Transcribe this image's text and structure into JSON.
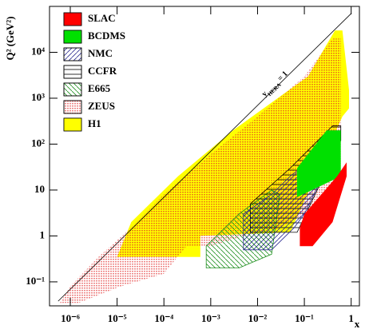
{
  "chart_data": {
    "type": "area",
    "x_label": "x",
    "y_label": "Q² (GeV²)",
    "x_scale": "log",
    "y_scale": "log",
    "xlim": [
      3.6e-07,
      1.5
    ],
    "ylim": [
      0.03,
      100000
    ],
    "xticks": [
      {
        "value": 1e-06,
        "label": "10⁻⁶"
      },
      {
        "value": 1e-05,
        "label": "10⁻⁵"
      },
      {
        "value": 0.0001,
        "label": "10⁻⁴"
      },
      {
        "value": 0.001,
        "label": "10⁻³"
      },
      {
        "value": 0.01,
        "label": "10⁻²"
      },
      {
        "value": 0.1,
        "label": "10⁻¹"
      },
      1
    ],
    "yticks": [
      {
        "value": 0.1,
        "label": "10⁻¹"
      },
      1,
      10,
      {
        "value": 100,
        "label": "10²"
      },
      {
        "value": 1000,
        "label": "10³"
      },
      {
        "value": 10000,
        "label": "10⁴"
      }
    ],
    "legend_position": "upper left",
    "reference_line": {
      "label": "y",
      "label_subscript": "HERA",
      "label_suffix": " = 1",
      "x": [
        5.5e-07,
        1
      ],
      "values": [
        0.038,
        70000
      ]
    },
    "series": [
      {
        "name": "SLAC",
        "color": "#ff0000",
        "pattern": "solid",
        "x": [
          0.08,
          0.15,
          0.4,
          0.8,
          0.8,
          0.5,
          0.1,
          0.08
        ],
        "values": [
          0.6,
          0.6,
          2,
          20,
          40,
          20,
          3,
          1.5
        ]
      },
      {
        "name": "BCDMS",
        "color": "#00e000",
        "pattern": "solid",
        "x": [
          0.07,
          0.6,
          0.6,
          0.3,
          0.07
        ],
        "values": [
          7,
          20,
          200,
          200,
          30
        ]
      },
      {
        "name": "NMC",
        "color": "#2a2a90",
        "pattern": "diagonal",
        "x": [
          0.005,
          0.02,
          0.06,
          0.1,
          0.3,
          0.2,
          0.05,
          0.02,
          0.005
        ],
        "values": [
          0.5,
          0.5,
          1.5,
          3,
          30,
          60,
          20,
          8,
          3
        ]
      },
      {
        "name": "CCFR",
        "color": "#000000",
        "pattern": "horizontal",
        "x": [
          0.007,
          0.07,
          0.6,
          0.6,
          0.4,
          0.05,
          0.007
        ],
        "values": [
          1.2,
          1.2,
          120,
          250,
          250,
          30,
          5
        ]
      },
      {
        "name": "E665",
        "color": "#209020",
        "pattern": "diagonal-reverse",
        "x": [
          0.0008,
          0.004,
          0.02,
          0.03,
          0.02,
          0.004,
          0.0008
        ],
        "values": [
          0.2,
          0.2,
          0.4,
          8,
          10,
          3,
          0.6
        ]
      },
      {
        "name": "ZEUS",
        "color": "#e02020",
        "pattern": "crosshatch",
        "x": [
          6e-07,
          1.5e-06,
          1.2e-05,
          0.0001,
          0.0003,
          0.001,
          0.005,
          0.03,
          0.1,
          0.6,
          0.6,
          0.4,
          0.1,
          0.01,
          0.001,
          0.0001,
          2e-05,
          4e-06,
          1e-06
        ],
        "values": [
          0.035,
          0.035,
          0.08,
          0.15,
          0.6,
          0.6,
          1,
          1.5,
          3,
          10,
          20000,
          20000,
          3000,
          400,
          60,
          8,
          1.5,
          0.35,
          0.08
        ]
      },
      {
        "name": "H1",
        "color": "#ffff00",
        "pattern": "solid",
        "x": [
          1e-05,
          0.0006,
          0.0006,
          0.05,
          0.65,
          0.9,
          0.9,
          0.65,
          0.45,
          0.12,
          0.003,
          0.0002,
          2e-05
        ],
        "values": [
          0.35,
          0.35,
          1,
          1.2,
          400,
          600,
          1500,
          30000,
          30000,
          3000,
          200,
          20,
          2
        ]
      }
    ]
  }
}
